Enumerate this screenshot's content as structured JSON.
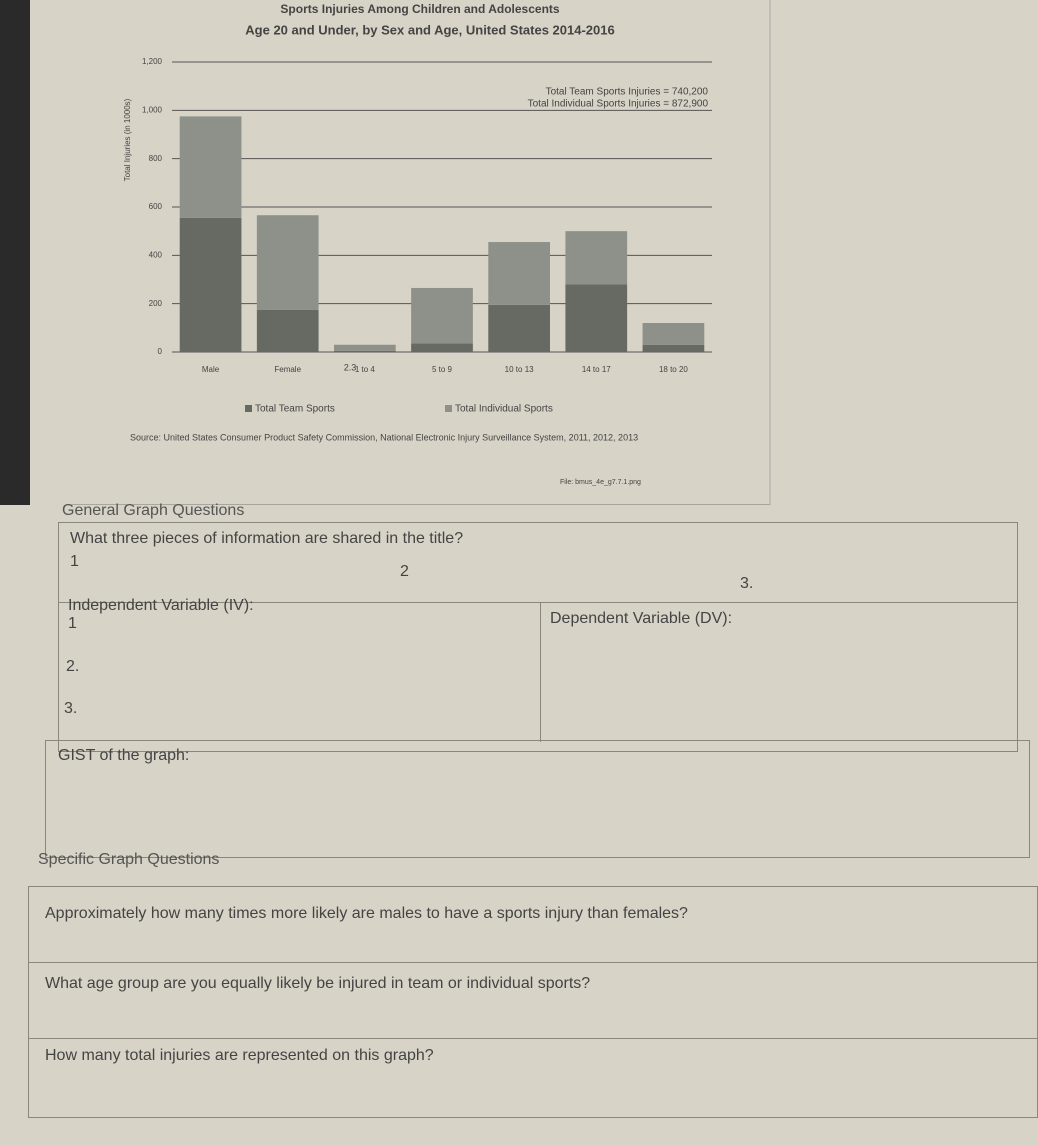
{
  "chart_data": {
    "type": "stacked_bar",
    "title": "Sports Injuries Among Children and Adolescents",
    "subtitle": "Age 20 and Under, by Sex and Age, United States 2014-2016",
    "y_label": "Total Injuries (in 1000s)",
    "categories": [
      "Male",
      "Female",
      "1 to 4",
      "5 to 9",
      "10 to 13",
      "14 to 17",
      "18 to 20"
    ],
    "series": [
      {
        "name": "Total Team Sports",
        "color": "#676a63",
        "values": [
          555,
          175,
          5,
          35,
          195,
          280,
          30
        ]
      },
      {
        "name": "Total Individual Sports",
        "color": "#8e918a",
        "values": [
          420,
          391,
          25,
          230,
          260,
          220,
          90
        ]
      }
    ],
    "ylim": [
      0,
      1200
    ],
    "yticks": [
      0,
      200,
      400,
      600,
      800,
      {
        "value": 1000,
        "label": "1,000"
      },
      {
        "value": 1200,
        "label": "1,200"
      }
    ],
    "grid": true,
    "annotations": [
      "Total Team Sports Injuries = 740,200",
      "Total Individual Sports Injuries = 872,900",
      "2.3"
    ],
    "source": "Source: United States Consumer Product Safety Commission, National Electronic Injury Surveillance System, 2011, 2012, 2013",
    "file": "File: bmus_4e_g7.7.1.png"
  },
  "worksheet": {
    "general": {
      "heading": "General Graph Questions",
      "title_question": "What three pieces of information are shared in the title?",
      "title_answers": [
        "1",
        "2",
        "3."
      ],
      "iv_label": "Independent Variable (IV):",
      "iv_answers": [
        "1",
        "2.",
        "3."
      ],
      "dv_label": "Dependent Variable (DV):",
      "gist_label": "GIST of the graph:"
    },
    "specific": {
      "heading": "Specific Graph Questions",
      "questions": [
        "Approximately how many times more likely are males to have a sports injury than females?",
        "What age group are you equally likely be injured in team or individual sports?",
        "How many total injuries are represented on this graph?"
      ]
    }
  }
}
